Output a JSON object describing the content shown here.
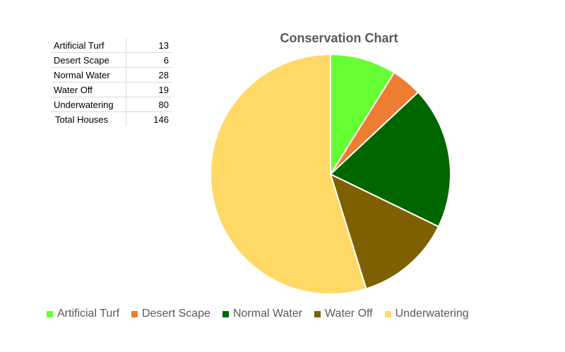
{
  "table": {
    "rows": [
      {
        "label": "Artificial Turf",
        "value": "13"
      },
      {
        "label": "Desert Scape",
        "value": "6"
      },
      {
        "label": "Normal Water",
        "value": "28"
      },
      {
        "label": "Water Off",
        "value": "19"
      },
      {
        "label": "Underwatering",
        "value": "80"
      }
    ],
    "total": {
      "label": "Total Houses",
      "value": "146"
    }
  },
  "chart_data": {
    "type": "pie",
    "title": "Conservation Chart",
    "categories": [
      "Artificial Turf",
      "Desert Scape",
      "Normal Water",
      "Water Off",
      "Underwatering"
    ],
    "values": [
      13,
      6,
      28,
      19,
      80
    ],
    "colors": [
      "#66ff33",
      "#ed7d31",
      "#006600",
      "#7f6000",
      "#ffd966"
    ],
    "legend_position": "bottom"
  }
}
